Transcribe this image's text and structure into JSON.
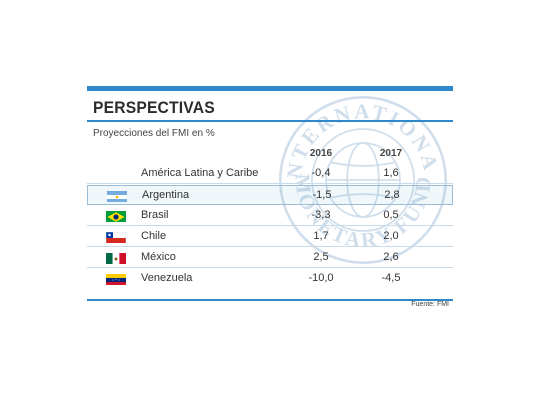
{
  "header": {
    "title": "PERSPECTIVAS",
    "subtitle": "Proyecciones del FMI en %"
  },
  "watermark": {
    "text_top": "INTERNATIONAL",
    "text_bottom": "MONETARY FUND"
  },
  "table": {
    "columns": [
      "2016",
      "2017"
    ],
    "rows": [
      {
        "label": "América Latina y Caribe",
        "flag": "",
        "v2016": "-0,4",
        "v2017": "1,6",
        "highlight": false
      },
      {
        "label": "Argentina",
        "flag": "argentina-flag-icon",
        "v2016": "-1,5",
        "v2017": "2,8",
        "highlight": true
      },
      {
        "label": "Brasil",
        "flag": "brazil-flag-icon",
        "v2016": "-3,3",
        "v2017": "0,5",
        "highlight": false
      },
      {
        "label": "Chile",
        "flag": "chile-flag-icon",
        "v2016": "1,7",
        "v2017": "2,0",
        "highlight": false
      },
      {
        "label": "México",
        "flag": "mexico-flag-icon",
        "v2016": "2,5",
        "v2017": "2,6",
        "highlight": false
      },
      {
        "label": "Venezuela",
        "flag": "venezuela-flag-icon",
        "v2016": "-10,0",
        "v2017": "-4,5",
        "highlight": false
      }
    ]
  },
  "footer": {
    "source": "Fuente: FMI"
  },
  "colors": {
    "accent": "#2e88c9",
    "row_rule": "#c9dbe8"
  }
}
